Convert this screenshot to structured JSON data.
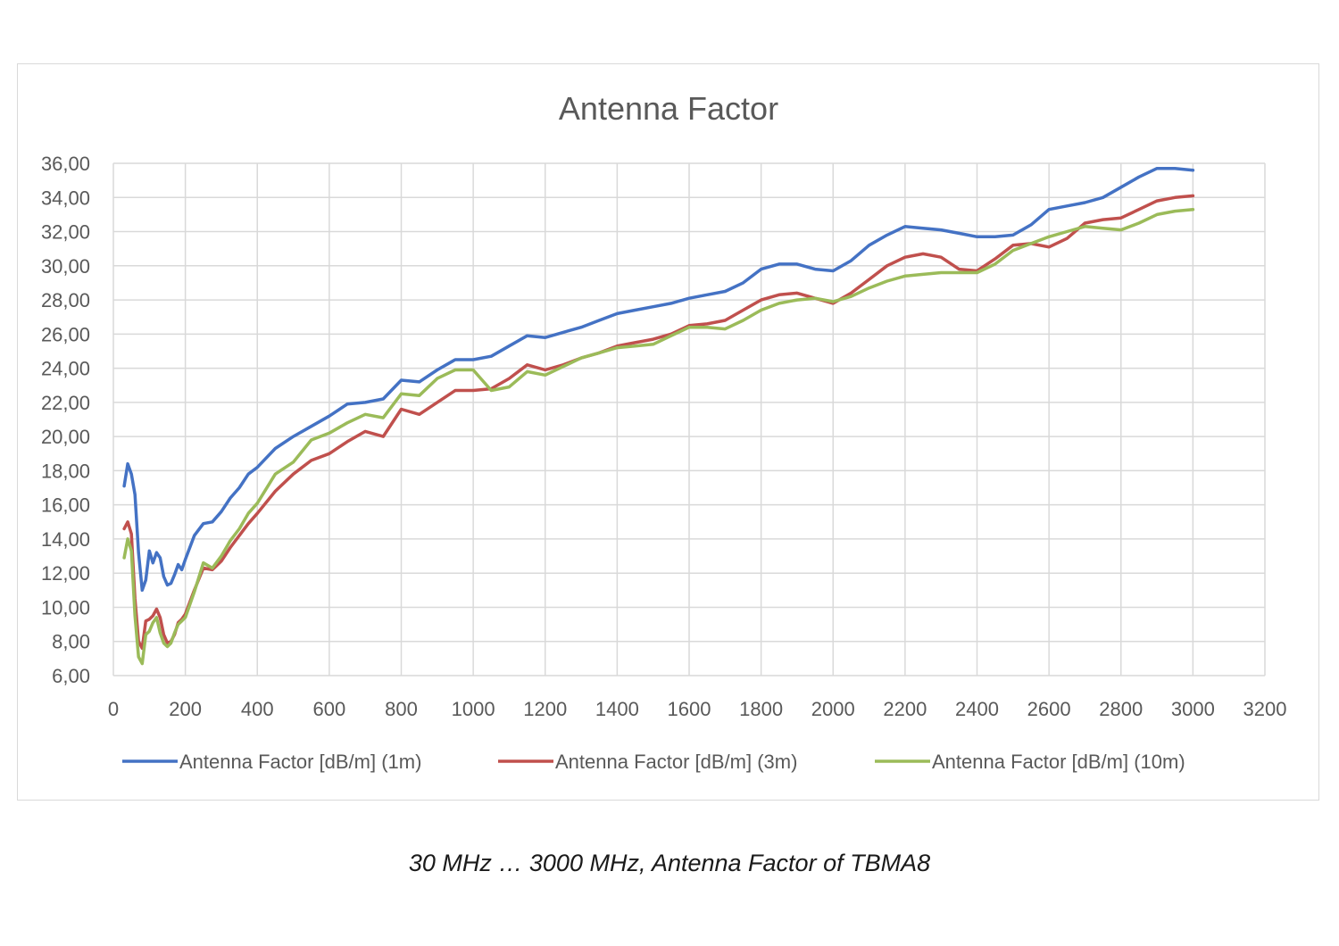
{
  "caption": "30 MHz … 3000 MHz, Antenna Factor of TBMA8",
  "chart_data": {
    "type": "line",
    "title": "Antenna Factor",
    "xlabel": "",
    "ylabel": "",
    "xlim": [
      0,
      3200
    ],
    "ylim": [
      6,
      36
    ],
    "x_ticks": [
      0,
      200,
      400,
      600,
      800,
      1000,
      1200,
      1400,
      1600,
      1800,
      2000,
      2200,
      2400,
      2600,
      2800,
      3000,
      3200
    ],
    "x_tick_labels": [
      "0",
      "200",
      "400",
      "600",
      "800",
      "1000",
      "1200",
      "1400",
      "1600",
      "1800",
      "2000",
      "2200",
      "2400",
      "2600",
      "2800",
      "3000",
      "3200"
    ],
    "y_ticks": [
      6,
      8,
      10,
      12,
      14,
      16,
      18,
      20,
      22,
      24,
      26,
      28,
      30,
      32,
      34,
      36
    ],
    "y_tick_labels": [
      "6,00",
      "8,00",
      "10,00",
      "12,00",
      "14,00",
      "16,00",
      "18,00",
      "20,00",
      "22,00",
      "24,00",
      "26,00",
      "28,00",
      "30,00",
      "32,00",
      "34,00",
      "36,00"
    ],
    "grid": true,
    "legend_position": "bottom",
    "series": [
      {
        "name": "Antenna Factor [dB/m] (1m)",
        "color": "#4472c4",
        "x": [
          30,
          40,
          50,
          60,
          70,
          80,
          90,
          100,
          110,
          120,
          130,
          140,
          150,
          160,
          170,
          180,
          190,
          200,
          225,
          250,
          275,
          300,
          325,
          350,
          375,
          400,
          450,
          500,
          550,
          600,
          650,
          700,
          750,
          800,
          850,
          900,
          950,
          1000,
          1050,
          1100,
          1150,
          1200,
          1250,
          1300,
          1350,
          1400,
          1450,
          1500,
          1550,
          1600,
          1650,
          1700,
          1750,
          1800,
          1850,
          1900,
          1950,
          2000,
          2050,
          2100,
          2150,
          2200,
          2250,
          2300,
          2350,
          2400,
          2450,
          2500,
          2550,
          2600,
          2650,
          2700,
          2750,
          2800,
          2850,
          2900,
          2950,
          3000
        ],
        "y": [
          17.1,
          18.4,
          17.8,
          16.6,
          13.2,
          11.0,
          11.6,
          13.3,
          12.6,
          13.2,
          12.9,
          11.8,
          11.3,
          11.4,
          11.9,
          12.5,
          12.2,
          12.8,
          14.2,
          14.9,
          15.0,
          15.6,
          16.4,
          17.0,
          17.8,
          18.2,
          19.3,
          20.0,
          20.6,
          21.2,
          21.9,
          22.0,
          22.2,
          23.3,
          23.2,
          23.9,
          24.5,
          24.5,
          24.7,
          25.3,
          25.9,
          25.8,
          26.1,
          26.4,
          26.8,
          27.2,
          27.4,
          27.6,
          27.8,
          28.1,
          28.3,
          28.5,
          29.0,
          29.8,
          30.1,
          30.1,
          29.8,
          29.7,
          30.3,
          31.2,
          31.8,
          32.3,
          32.2,
          32.1,
          31.9,
          31.7,
          31.7,
          31.8,
          32.4,
          33.3,
          33.5,
          33.7,
          34.0,
          34.6,
          35.2,
          35.7,
          35.7,
          35.6
        ]
      },
      {
        "name": "Antenna Factor [dB/m] (3m)",
        "color": "#c0504d",
        "x": [
          30,
          40,
          50,
          60,
          70,
          80,
          90,
          100,
          110,
          120,
          130,
          140,
          150,
          160,
          170,
          180,
          190,
          200,
          225,
          250,
          275,
          300,
          325,
          350,
          375,
          400,
          450,
          500,
          550,
          600,
          650,
          700,
          750,
          800,
          850,
          900,
          950,
          1000,
          1050,
          1100,
          1150,
          1200,
          1250,
          1300,
          1350,
          1400,
          1450,
          1500,
          1550,
          1600,
          1650,
          1700,
          1750,
          1800,
          1850,
          1900,
          1950,
          2000,
          2050,
          2100,
          2150,
          2200,
          2250,
          2300,
          2350,
          2400,
          2450,
          2500,
          2550,
          2600,
          2650,
          2700,
          2750,
          2800,
          2850,
          2900,
          2950,
          3000
        ],
        "y": [
          14.6,
          15.0,
          14.3,
          10.5,
          8.0,
          7.6,
          9.2,
          9.3,
          9.5,
          9.9,
          9.4,
          8.4,
          7.9,
          8.0,
          8.4,
          9.1,
          9.3,
          9.6,
          11.0,
          12.3,
          12.2,
          12.7,
          13.5,
          14.2,
          14.9,
          15.5,
          16.8,
          17.8,
          18.6,
          19.0,
          19.7,
          20.3,
          20.0,
          21.6,
          21.3,
          22.0,
          22.7,
          22.7,
          22.8,
          23.4,
          24.2,
          23.9,
          24.2,
          24.6,
          24.9,
          25.3,
          25.5,
          25.7,
          26.0,
          26.5,
          26.6,
          26.8,
          27.4,
          28.0,
          28.3,
          28.4,
          28.1,
          27.8,
          28.4,
          29.2,
          30.0,
          30.5,
          30.7,
          30.5,
          29.8,
          29.7,
          30.4,
          31.2,
          31.3,
          31.1,
          31.6,
          32.5,
          32.7,
          32.8,
          33.3,
          33.8,
          34.0,
          34.1
        ]
      },
      {
        "name": "Antenna Factor [dB/m] (10m)",
        "color": "#9bbb59",
        "x": [
          30,
          40,
          50,
          60,
          70,
          80,
          90,
          100,
          110,
          120,
          130,
          140,
          150,
          160,
          170,
          180,
          190,
          200,
          225,
          250,
          275,
          300,
          325,
          350,
          375,
          400,
          450,
          500,
          550,
          600,
          650,
          700,
          750,
          800,
          850,
          900,
          950,
          1000,
          1050,
          1100,
          1150,
          1200,
          1250,
          1300,
          1350,
          1400,
          1450,
          1500,
          1550,
          1600,
          1650,
          1700,
          1750,
          1800,
          1850,
          1900,
          1950,
          2000,
          2050,
          2100,
          2150,
          2200,
          2250,
          2300,
          2350,
          2400,
          2450,
          2500,
          2550,
          2600,
          2650,
          2700,
          2750,
          2800,
          2850,
          2900,
          2950,
          3000
        ],
        "y": [
          12.9,
          14.0,
          13.3,
          9.5,
          7.1,
          6.7,
          8.4,
          8.6,
          9.1,
          9.4,
          8.5,
          7.9,
          7.7,
          7.9,
          8.5,
          9.0,
          9.2,
          9.4,
          10.9,
          12.6,
          12.3,
          13.0,
          13.9,
          14.6,
          15.5,
          16.1,
          17.8,
          18.5,
          19.8,
          20.2,
          20.8,
          21.3,
          21.1,
          22.5,
          22.4,
          23.4,
          23.9,
          23.9,
          22.7,
          22.9,
          23.8,
          23.6,
          24.1,
          24.6,
          24.9,
          25.2,
          25.3,
          25.4,
          25.9,
          26.4,
          26.4,
          26.3,
          26.8,
          27.4,
          27.8,
          28.0,
          28.1,
          27.9,
          28.2,
          28.7,
          29.1,
          29.4,
          29.5,
          29.6,
          29.6,
          29.6,
          30.1,
          30.9,
          31.3,
          31.7,
          32.0,
          32.3,
          32.2,
          32.1,
          32.5,
          33.0,
          33.2,
          33.3
        ]
      }
    ]
  }
}
